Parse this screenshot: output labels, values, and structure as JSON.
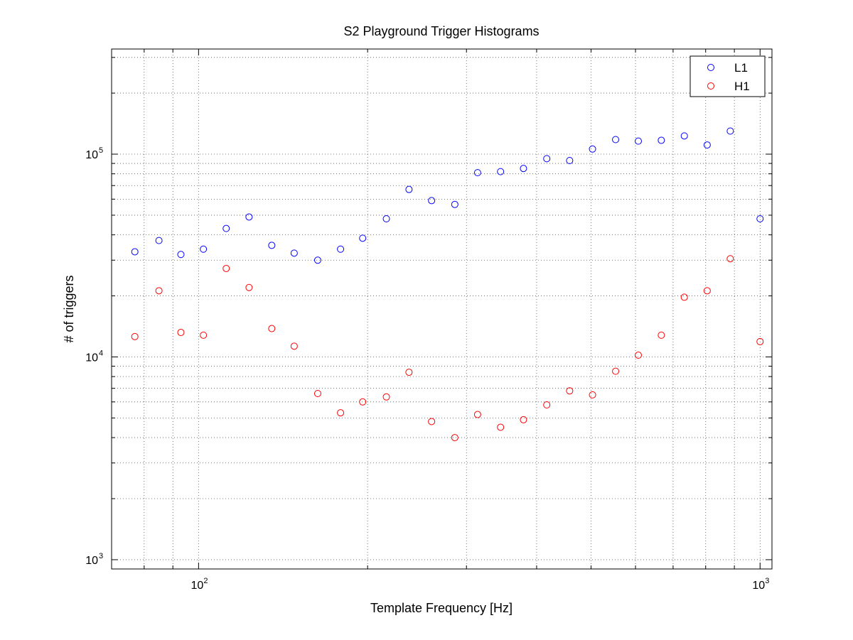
{
  "chart_data": {
    "type": "scatter",
    "title": "S2 Playground Trigger Histograms",
    "xlabel": "Template Frequency [Hz]",
    "ylabel": "# of triggers",
    "xscale": "log",
    "yscale": "log",
    "xlim": [
      70,
      1050
    ],
    "ylim": [
      900,
      330000
    ],
    "grid": true,
    "legend": "top-right",
    "x_ticks": [
      {
        "base": "10",
        "exp": "2",
        "value": 100
      },
      {
        "base": "10",
        "exp": "3",
        "value": 1000
      }
    ],
    "y_ticks": [
      {
        "base": "10",
        "exp": "3",
        "value": 1000
      },
      {
        "base": "10",
        "exp": "4",
        "value": 10000
      },
      {
        "base": "10",
        "exp": "5",
        "value": 100000
      }
    ],
    "x": [
      77,
      85,
      93,
      102,
      112,
      123,
      135,
      148,
      163,
      179,
      196,
      216,
      237,
      260,
      286,
      314,
      345,
      379,
      417,
      458,
      503,
      553,
      607,
      667,
      733,
      805,
      885,
      1000
    ],
    "series": [
      {
        "name": "L1",
        "color": "#0000ff",
        "values": [
          33000,
          37500,
          32000,
          34000,
          43000,
          49000,
          35500,
          32500,
          30000,
          34000,
          38500,
          48000,
          67000,
          59000,
          56500,
          81000,
          82000,
          85000,
          95000,
          93000,
          106000,
          118000,
          116000,
          117000,
          123000,
          111000,
          130000,
          48000
        ]
      },
      {
        "name": "H1",
        "color": "#ff0000",
        "values": [
          12600,
          21200,
          13200,
          12800,
          27300,
          22000,
          13800,
          11300,
          6600,
          5300,
          6000,
          6350,
          8400,
          4800,
          4000,
          5200,
          4500,
          4900,
          5800,
          6800,
          6500,
          8500,
          10200,
          12800,
          19700,
          21200,
          30500,
          11900
        ]
      }
    ]
  }
}
